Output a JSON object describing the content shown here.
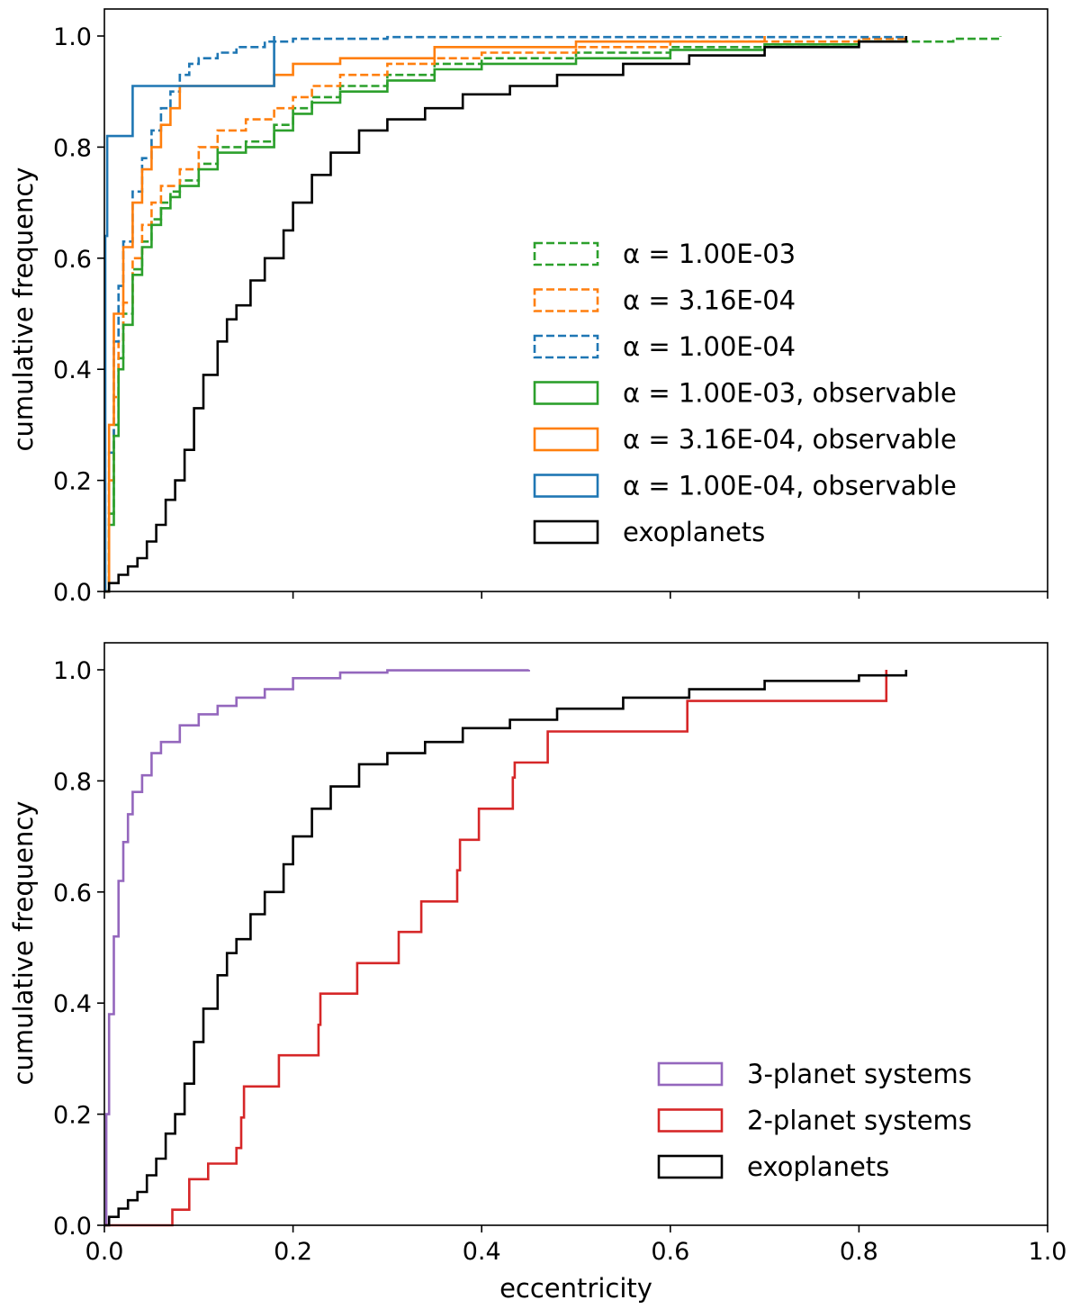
{
  "chart_data": [
    {
      "type": "line",
      "title": "",
      "xlabel": "",
      "ylabel": "cumulative frequency",
      "xlim": [
        0.0,
        1.0
      ],
      "ylim": [
        0.0,
        1.0
      ],
      "xticks": [
        "0.0",
        "0.2",
        "0.4",
        "0.6",
        "0.8",
        "1.0"
      ],
      "yticks": [
        "0.0",
        "0.2",
        "0.4",
        "0.6",
        "0.8",
        "1.0"
      ],
      "show_xtick_labels": false,
      "legend_position": "center-right",
      "series": [
        {
          "name": "α = 1.00E-03",
          "color": "#2ca02c",
          "dash": true,
          "cdf": [
            [
              0.0,
              0.0
            ],
            [
              0.005,
              0.14
            ],
            [
              0.01,
              0.3
            ],
            [
              0.015,
              0.42
            ],
            [
              0.02,
              0.5
            ],
            [
              0.03,
              0.58
            ],
            [
              0.04,
              0.63
            ],
            [
              0.05,
              0.67
            ],
            [
              0.06,
              0.7
            ],
            [
              0.07,
              0.72
            ],
            [
              0.08,
              0.74
            ],
            [
              0.1,
              0.77
            ],
            [
              0.12,
              0.8
            ],
            [
              0.15,
              0.81
            ],
            [
              0.18,
              0.84
            ],
            [
              0.2,
              0.87
            ],
            [
              0.22,
              0.89
            ],
            [
              0.25,
              0.91
            ],
            [
              0.3,
              0.93
            ],
            [
              0.35,
              0.95
            ],
            [
              0.4,
              0.96
            ],
            [
              0.5,
              0.97
            ],
            [
              0.6,
              0.98
            ],
            [
              0.7,
              0.985
            ],
            [
              0.8,
              0.99
            ],
            [
              0.9,
              0.995
            ],
            [
              0.95,
              1.0
            ]
          ]
        },
        {
          "name": "α = 3.16E-04",
          "color": "#ff7f0e",
          "dash": true,
          "cdf": [
            [
              0.0,
              0.0
            ],
            [
              0.005,
              0.2
            ],
            [
              0.01,
              0.35
            ],
            [
              0.015,
              0.45
            ],
            [
              0.02,
              0.52
            ],
            [
              0.03,
              0.6
            ],
            [
              0.04,
              0.66
            ],
            [
              0.05,
              0.7
            ],
            [
              0.06,
              0.73
            ],
            [
              0.08,
              0.76
            ],
            [
              0.1,
              0.8
            ],
            [
              0.12,
              0.83
            ],
            [
              0.15,
              0.85
            ],
            [
              0.18,
              0.87
            ],
            [
              0.2,
              0.89
            ],
            [
              0.22,
              0.91
            ],
            [
              0.25,
              0.93
            ],
            [
              0.3,
              0.95
            ],
            [
              0.35,
              0.96
            ],
            [
              0.4,
              0.97
            ],
            [
              0.5,
              0.98
            ],
            [
              0.6,
              0.99
            ],
            [
              0.8,
              0.995
            ],
            [
              0.85,
              1.0
            ]
          ]
        },
        {
          "name": "α = 1.00E-04",
          "color": "#1f77b4",
          "dash": true,
          "cdf": [
            [
              0.0,
              0.0
            ],
            [
              0.005,
              0.25
            ],
            [
              0.01,
              0.45
            ],
            [
              0.015,
              0.55
            ],
            [
              0.02,
              0.63
            ],
            [
              0.03,
              0.72
            ],
            [
              0.04,
              0.78
            ],
            [
              0.05,
              0.83
            ],
            [
              0.06,
              0.87
            ],
            [
              0.07,
              0.9
            ],
            [
              0.08,
              0.93
            ],
            [
              0.09,
              0.95
            ],
            [
              0.1,
              0.96
            ],
            [
              0.12,
              0.97
            ],
            [
              0.14,
              0.98
            ],
            [
              0.17,
              0.99
            ],
            [
              0.2,
              0.995
            ],
            [
              0.3,
              0.998
            ],
            [
              0.85,
              1.0
            ]
          ]
        },
        {
          "name": "α = 1.00E-03, observable",
          "color": "#2ca02c",
          "dash": false,
          "cdf": [
            [
              0.0,
              0.0
            ],
            [
              0.005,
              0.12
            ],
            [
              0.01,
              0.28
            ],
            [
              0.015,
              0.4
            ],
            [
              0.02,
              0.48
            ],
            [
              0.03,
              0.57
            ],
            [
              0.04,
              0.62
            ],
            [
              0.05,
              0.66
            ],
            [
              0.06,
              0.69
            ],
            [
              0.07,
              0.71
            ],
            [
              0.08,
              0.73
            ],
            [
              0.1,
              0.76
            ],
            [
              0.12,
              0.79
            ],
            [
              0.15,
              0.8
            ],
            [
              0.18,
              0.83
            ],
            [
              0.2,
              0.86
            ],
            [
              0.22,
              0.88
            ],
            [
              0.25,
              0.9
            ],
            [
              0.3,
              0.92
            ],
            [
              0.35,
              0.94
            ],
            [
              0.4,
              0.95
            ],
            [
              0.5,
              0.96
            ],
            [
              0.6,
              0.975
            ],
            [
              0.7,
              0.985
            ],
            [
              0.8,
              0.99
            ],
            [
              0.85,
              1.0
            ]
          ]
        },
        {
          "name": "α = 3.16E-04, observable",
          "color": "#ff7f0e",
          "dash": false,
          "cdf": [
            [
              0.0,
              0.0
            ],
            [
              0.005,
              0.3
            ],
            [
              0.01,
              0.5
            ],
            [
              0.02,
              0.62
            ],
            [
              0.03,
              0.7
            ],
            [
              0.04,
              0.76
            ],
            [
              0.05,
              0.8
            ],
            [
              0.06,
              0.84
            ],
            [
              0.07,
              0.87
            ],
            [
              0.08,
              0.91
            ],
            [
              0.18,
              0.93
            ],
            [
              0.2,
              0.95
            ],
            [
              0.25,
              0.96
            ],
            [
              0.35,
              0.98
            ],
            [
              0.5,
              0.99
            ],
            [
              0.7,
              1.0
            ]
          ]
        },
        {
          "name": "α = 1.00E-04, observable",
          "color": "#1f77b4",
          "dash": false,
          "cdf": [
            [
              0.0,
              0.0
            ],
            [
              0.001,
              0.64
            ],
            [
              0.003,
              0.82
            ],
            [
              0.03,
              0.91
            ],
            [
              0.18,
              1.0
            ]
          ]
        },
        {
          "name": "exoplanets",
          "color": "#000000",
          "dash": false,
          "cdf": [
            [
              0.0,
              0.0
            ],
            [
              0.005,
              0.015
            ],
            [
              0.015,
              0.03
            ],
            [
              0.025,
              0.045
            ],
            [
              0.035,
              0.06
            ],
            [
              0.045,
              0.09
            ],
            [
              0.055,
              0.12
            ],
            [
              0.065,
              0.165
            ],
            [
              0.075,
              0.2
            ],
            [
              0.085,
              0.255
            ],
            [
              0.095,
              0.33
            ],
            [
              0.105,
              0.39
            ],
            [
              0.12,
              0.45
            ],
            [
              0.13,
              0.49
            ],
            [
              0.14,
              0.515
            ],
            [
              0.155,
              0.56
            ],
            [
              0.17,
              0.6
            ],
            [
              0.19,
              0.65
            ],
            [
              0.2,
              0.7
            ],
            [
              0.22,
              0.75
            ],
            [
              0.24,
              0.79
            ],
            [
              0.27,
              0.83
            ],
            [
              0.3,
              0.85
            ],
            [
              0.34,
              0.87
            ],
            [
              0.38,
              0.895
            ],
            [
              0.43,
              0.91
            ],
            [
              0.48,
              0.93
            ],
            [
              0.55,
              0.95
            ],
            [
              0.62,
              0.965
            ],
            [
              0.7,
              0.98
            ],
            [
              0.8,
              0.99
            ],
            [
              0.85,
              1.0
            ]
          ]
        }
      ]
    },
    {
      "type": "line",
      "title": "",
      "xlabel": "eccentricity",
      "ylabel": "cumulative frequency",
      "xlim": [
        0.0,
        1.0
      ],
      "ylim": [
        0.0,
        1.0
      ],
      "xticks": [
        "0.0",
        "0.2",
        "0.4",
        "0.6",
        "0.8",
        "1.0"
      ],
      "yticks": [
        "0.0",
        "0.2",
        "0.4",
        "0.6",
        "0.8",
        "1.0"
      ],
      "show_xtick_labels": true,
      "legend_position": "lower-right",
      "series": [
        {
          "name": "3-planet systems",
          "color": "#9467bd",
          "dash": false,
          "cdf": [
            [
              0.0,
              0.0
            ],
            [
              0.002,
              0.2
            ],
            [
              0.005,
              0.38
            ],
            [
              0.01,
              0.52
            ],
            [
              0.015,
              0.62
            ],
            [
              0.02,
              0.69
            ],
            [
              0.025,
              0.74
            ],
            [
              0.03,
              0.78
            ],
            [
              0.04,
              0.81
            ],
            [
              0.05,
              0.85
            ],
            [
              0.06,
              0.87
            ],
            [
              0.08,
              0.9
            ],
            [
              0.1,
              0.92
            ],
            [
              0.12,
              0.935
            ],
            [
              0.14,
              0.95
            ],
            [
              0.17,
              0.965
            ],
            [
              0.2,
              0.985
            ],
            [
              0.25,
              0.995
            ],
            [
              0.3,
              0.999
            ],
            [
              0.45,
              1.0
            ]
          ]
        },
        {
          "name": "2-planet systems",
          "color": "#d62728",
          "dash": false,
          "cdf": [
            [
              0.0,
              0.0
            ],
            [
              0.07,
              0.0
            ],
            [
              0.072,
              0.028
            ],
            [
              0.09,
              0.083
            ],
            [
              0.11,
              0.111
            ],
            [
              0.14,
              0.139
            ],
            [
              0.145,
              0.194
            ],
            [
              0.148,
              0.25
            ],
            [
              0.185,
              0.306
            ],
            [
              0.227,
              0.361
            ],
            [
              0.229,
              0.417
            ],
            [
              0.268,
              0.472
            ],
            [
              0.312,
              0.528
            ],
            [
              0.336,
              0.583
            ],
            [
              0.374,
              0.639
            ],
            [
              0.377,
              0.694
            ],
            [
              0.397,
              0.75
            ],
            [
              0.433,
              0.806
            ],
            [
              0.435,
              0.833
            ],
            [
              0.47,
              0.889
            ],
            [
              0.618,
              0.944
            ],
            [
              0.829,
              1.0
            ]
          ]
        },
        {
          "name": "exoplanets",
          "color": "#000000",
          "dash": false,
          "cdf": [
            [
              0.0,
              0.0
            ],
            [
              0.005,
              0.015
            ],
            [
              0.015,
              0.03
            ],
            [
              0.025,
              0.045
            ],
            [
              0.035,
              0.06
            ],
            [
              0.045,
              0.09
            ],
            [
              0.055,
              0.12
            ],
            [
              0.065,
              0.165
            ],
            [
              0.075,
              0.2
            ],
            [
              0.085,
              0.255
            ],
            [
              0.095,
              0.33
            ],
            [
              0.105,
              0.39
            ],
            [
              0.12,
              0.45
            ],
            [
              0.13,
              0.49
            ],
            [
              0.14,
              0.515
            ],
            [
              0.155,
              0.56
            ],
            [
              0.17,
              0.6
            ],
            [
              0.19,
              0.65
            ],
            [
              0.2,
              0.7
            ],
            [
              0.22,
              0.75
            ],
            [
              0.24,
              0.79
            ],
            [
              0.27,
              0.83
            ],
            [
              0.3,
              0.85
            ],
            [
              0.34,
              0.87
            ],
            [
              0.38,
              0.895
            ],
            [
              0.43,
              0.91
            ],
            [
              0.48,
              0.93
            ],
            [
              0.55,
              0.95
            ],
            [
              0.62,
              0.965
            ],
            [
              0.7,
              0.98
            ],
            [
              0.8,
              0.99
            ],
            [
              0.85,
              1.0
            ]
          ]
        }
      ]
    }
  ]
}
